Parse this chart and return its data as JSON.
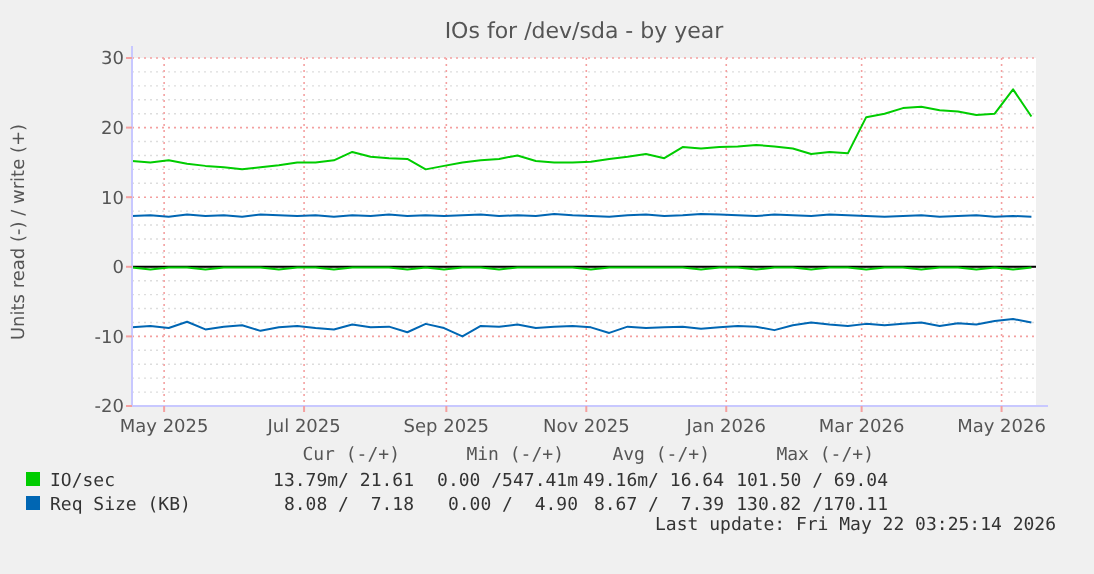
{
  "chart_data": {
    "type": "line",
    "title": "IOs for /dev/sda - by year",
    "ylabel": "Units read (-) / write (+)",
    "x": [
      "2025-04-17",
      "2025-04-25",
      "2025-05-03",
      "2025-05-11",
      "2025-05-19",
      "2025-05-27",
      "2025-06-04",
      "2025-06-12",
      "2025-06-20",
      "2025-06-28",
      "2025-07-06",
      "2025-07-14",
      "2025-07-22",
      "2025-07-30",
      "2025-08-07",
      "2025-08-15",
      "2025-08-23",
      "2025-08-31",
      "2025-09-08",
      "2025-09-16",
      "2025-09-24",
      "2025-10-02",
      "2025-10-10",
      "2025-10-18",
      "2025-10-26",
      "2025-11-03",
      "2025-11-11",
      "2025-11-19",
      "2025-11-27",
      "2025-12-05",
      "2025-12-13",
      "2025-12-21",
      "2025-12-29",
      "2026-01-06",
      "2026-01-14",
      "2026-01-22",
      "2026-01-30",
      "2026-02-07",
      "2026-02-15",
      "2026-02-23",
      "2026-03-03",
      "2026-03-11",
      "2026-03-19",
      "2026-03-27",
      "2026-04-04",
      "2026-04-12",
      "2026-04-20",
      "2026-04-28",
      "2026-05-06",
      "2026-05-14"
    ],
    "xlim": [
      "2025-04-17",
      "2026-05-16"
    ],
    "xticks": [
      {
        "value": "2025-05-01",
        "label": "May 2025"
      },
      {
        "value": "2025-07-01",
        "label": "Jul 2025"
      },
      {
        "value": "2025-09-01",
        "label": "Sep 2025"
      },
      {
        "value": "2025-11-01",
        "label": "Nov 2025"
      },
      {
        "value": "2026-01-01",
        "label": "Jan 2026"
      },
      {
        "value": "2026-03-01",
        "label": "Mar 2026"
      },
      {
        "value": "2026-05-01",
        "label": "May 2026"
      }
    ],
    "ylim": [
      -20,
      30
    ],
    "yticks": [
      -20,
      -10,
      0,
      10,
      20,
      30
    ],
    "grid": true,
    "legend": "bottom",
    "series": [
      {
        "name": "IO/sec",
        "color": "#00cc00",
        "values": [
          15.2,
          15.0,
          15.3,
          14.8,
          14.5,
          14.3,
          14.0,
          14.3,
          14.6,
          15.0,
          15.0,
          15.3,
          16.5,
          15.8,
          15.6,
          15.5,
          14.0,
          14.5,
          15.0,
          15.3,
          15.5,
          16.0,
          15.2,
          15.0,
          15.0,
          15.1,
          15.5,
          15.8,
          16.2,
          15.6,
          17.2,
          17.0,
          17.2,
          17.3,
          17.5,
          17.3,
          17.0,
          16.2,
          16.5,
          16.3,
          21.5,
          22.0,
          22.8,
          23.0,
          22.5,
          22.3,
          21.8,
          22.0,
          25.5,
          21.6
        ]
      },
      {
        "color": "#00cc00",
        "values": [
          -0.1,
          -0.4,
          -0.1,
          -0.1,
          -0.4,
          -0.1,
          -0.1,
          -0.1,
          -0.4,
          -0.1,
          -0.1,
          -0.4,
          -0.1,
          -0.1,
          -0.1,
          -0.4,
          -0.1,
          -0.4,
          -0.1,
          -0.1,
          -0.4,
          -0.1,
          -0.1,
          -0.1,
          -0.1,
          -0.4,
          -0.1,
          -0.1,
          -0.1,
          -0.1,
          -0.1,
          -0.4,
          -0.1,
          -0.1,
          -0.4,
          -0.1,
          -0.1,
          -0.4,
          -0.1,
          -0.1,
          -0.4,
          -0.1,
          -0.1,
          -0.4,
          -0.1,
          -0.1,
          -0.4,
          -0.1,
          -0.4,
          -0.1
        ]
      },
      {
        "name": "Req Size (KB)",
        "color": "#0066b3",
        "values": [
          7.3,
          7.4,
          7.2,
          7.5,
          7.3,
          7.4,
          7.2,
          7.5,
          7.4,
          7.3,
          7.4,
          7.2,
          7.4,
          7.3,
          7.5,
          7.3,
          7.4,
          7.3,
          7.4,
          7.5,
          7.3,
          7.4,
          7.3,
          7.6,
          7.4,
          7.3,
          7.2,
          7.4,
          7.5,
          7.3,
          7.4,
          7.6,
          7.5,
          7.4,
          7.3,
          7.5,
          7.4,
          7.3,
          7.5,
          7.4,
          7.3,
          7.2,
          7.3,
          7.4,
          7.2,
          7.3,
          7.4,
          7.2,
          7.3,
          7.2
        ]
      },
      {
        "color": "#0066b3",
        "values": [
          -8.7,
          -8.5,
          -8.8,
          -7.9,
          -9.0,
          -8.6,
          -8.4,
          -9.2,
          -8.7,
          -8.5,
          -8.8,
          -9.0,
          -8.3,
          -8.7,
          -8.6,
          -9.4,
          -8.2,
          -8.8,
          -10.0,
          -8.5,
          -8.6,
          -8.3,
          -8.8,
          -8.6,
          -8.5,
          -8.7,
          -9.5,
          -8.6,
          -8.8,
          -8.7,
          -8.6,
          -8.9,
          -8.7,
          -8.5,
          -8.6,
          -9.1,
          -8.4,
          -8.0,
          -8.3,
          -8.5,
          -8.2,
          -8.4,
          -8.2,
          -8.0,
          -8.5,
          -8.1,
          -8.3,
          -7.8,
          -7.5,
          -8.0
        ]
      }
    ],
    "annotations": [
      "Cur (-/+)",
      "Min (-/+)",
      "Avg (-/+)",
      "Max (-/+)",
      "13.79m/ 21.61",
      "0.00 /547.41m",
      "49.16m/ 16.64",
      "101.50 / 69.04",
      "8.08 /  7.18",
      "0.00 /  4.90",
      "8.67 /  7.39",
      "130.82 /170.11",
      "Last update: Fri May 22 03:25:14 2026"
    ]
  }
}
